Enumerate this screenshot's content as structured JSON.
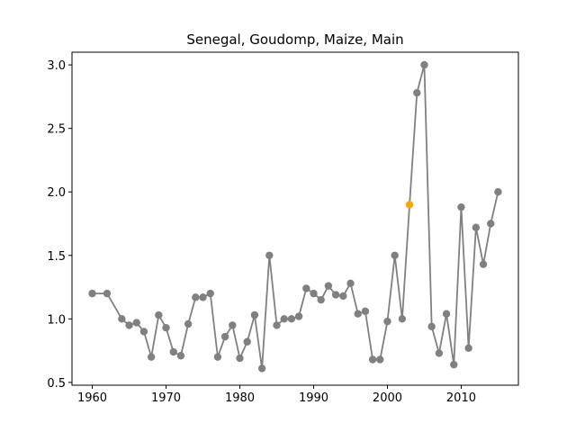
{
  "chart_data": {
    "type": "line",
    "title": "Senegal, Goudomp, Maize, Main",
    "xlabel": "",
    "ylabel": "",
    "xlim": [
      1957.25,
      2017.75
    ],
    "ylim": [
      0.478,
      3.1
    ],
    "xticks": [
      1960,
      1970,
      1980,
      1990,
      2000,
      2010
    ],
    "xtick_labels": [
      "1960",
      "1970",
      "1980",
      "1990",
      "2000",
      "2010"
    ],
    "yticks": [
      0.5,
      1.0,
      1.5,
      2.0,
      2.5,
      3.0
    ],
    "ytick_labels": [
      "0.5",
      "1.0",
      "1.5",
      "2.0",
      "2.5",
      "3.0"
    ],
    "grid": false,
    "line_color": "#808080",
    "highlight_color": "#FFA500",
    "highlight_index": 41,
    "series": [
      {
        "x": [
          1960,
          1962,
          1964,
          1965,
          1966,
          1967,
          1968,
          1969,
          1970,
          1971,
          1972,
          1973,
          1974,
          1975,
          1976,
          1977,
          1978,
          1979,
          1980,
          1981,
          1982,
          1983,
          1984,
          1985,
          1986,
          1987,
          1988,
          1989,
          1990,
          1991,
          1992,
          1993,
          1994,
          1995,
          1996,
          1997,
          1998,
          1999,
          2000,
          2001,
          2002,
          2003,
          2004,
          2005,
          2006,
          2007,
          2008,
          2009,
          2010,
          2011,
          2012,
          2013,
          2014,
          2015
        ],
        "y": [
          1.2,
          1.2,
          1.0,
          0.95,
          0.97,
          0.9,
          0.7,
          1.03,
          0.93,
          0.74,
          0.71,
          0.96,
          1.17,
          1.17,
          1.2,
          0.7,
          0.86,
          0.95,
          0.69,
          0.82,
          1.03,
          0.61,
          1.5,
          0.95,
          1.0,
          1.0,
          1.02,
          1.24,
          1.2,
          1.15,
          1.26,
          1.19,
          1.18,
          1.28,
          1.04,
          1.06,
          0.68,
          0.68,
          0.98,
          1.5,
          1.0,
          1.9,
          2.78,
          3.0,
          0.94,
          0.73,
          1.04,
          0.64,
          1.88,
          0.77,
          1.72,
          1.43,
          1.75,
          2.0
        ]
      }
    ]
  }
}
